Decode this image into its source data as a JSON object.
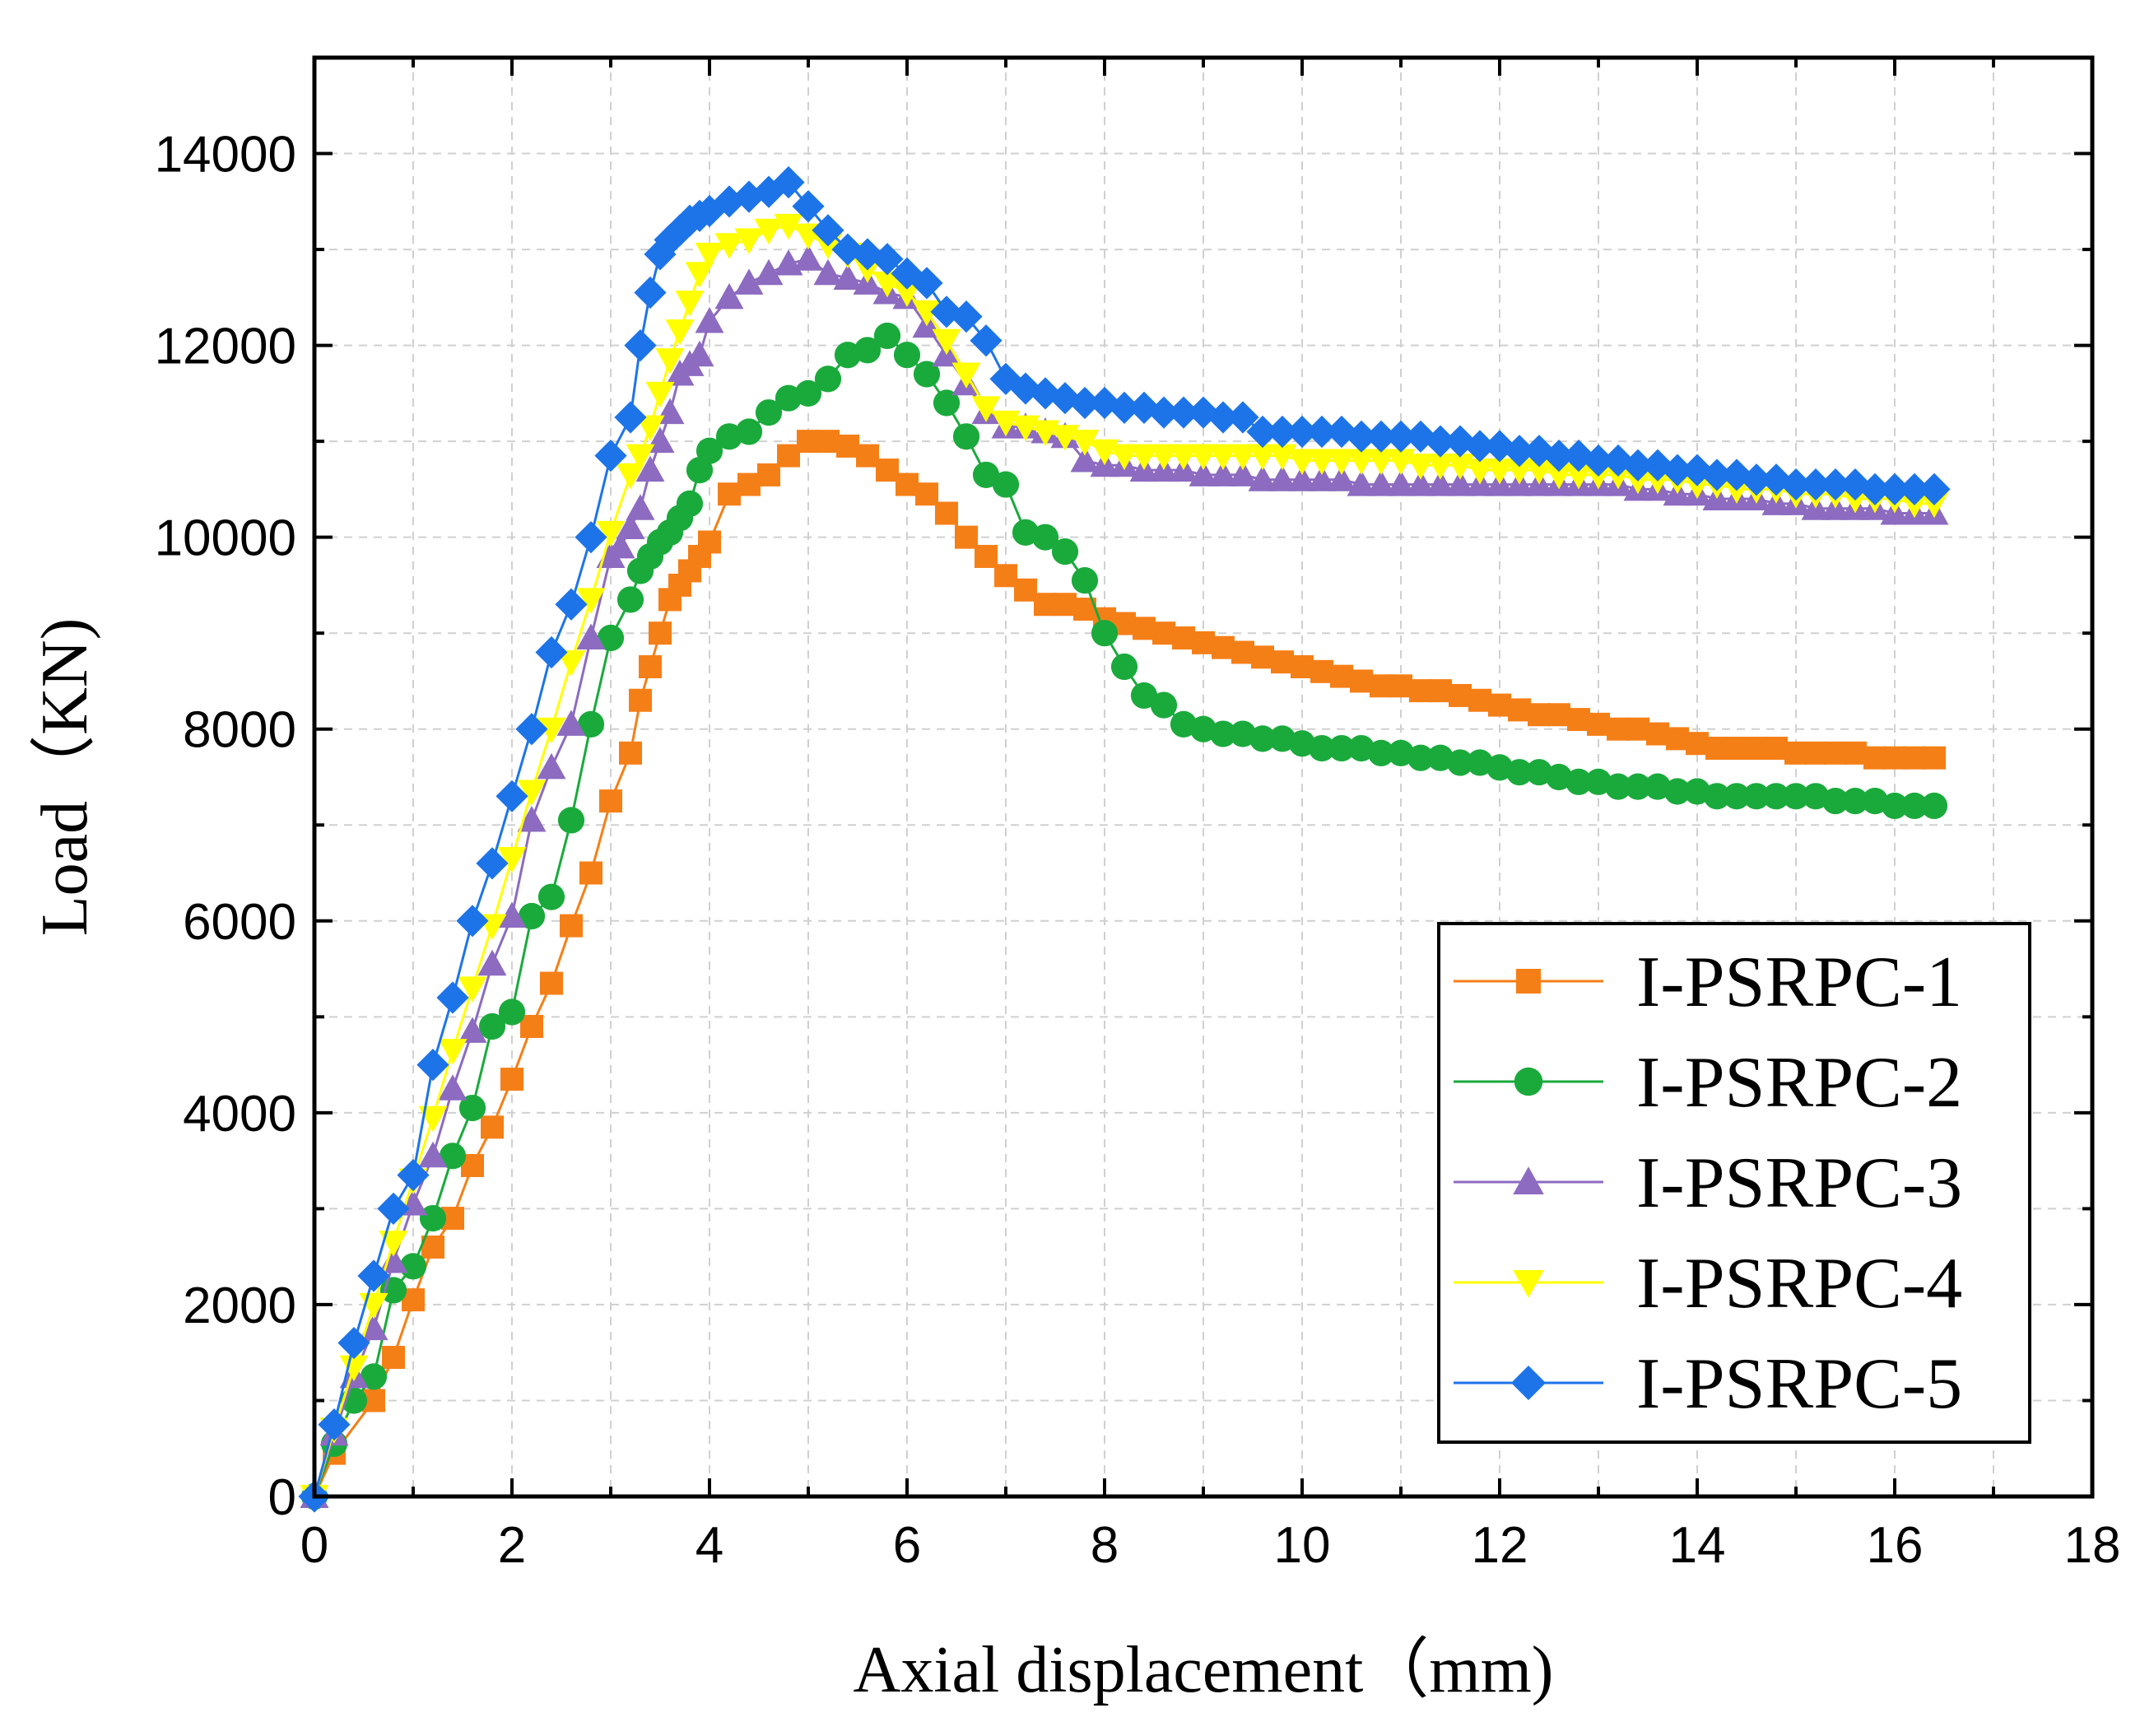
{
  "chart_data": {
    "type": "line",
    "title": "",
    "xlabel": "Axial displacement（mm)",
    "ylabel": "Load（KN)",
    "xlim": [
      0,
      18
    ],
    "ylim": [
      0,
      15000
    ],
    "xticks": [
      0,
      2,
      4,
      6,
      8,
      10,
      12,
      14,
      16,
      18
    ],
    "yticks": [
      0,
      2000,
      4000,
      6000,
      8000,
      10000,
      12000,
      14000
    ],
    "grid": true,
    "legend_position": "bottom-right",
    "series": [
      {
        "name": "I-PSRPC-1",
        "color": "#f57f17",
        "marker": "square",
        "x": [
          0,
          0.2,
          0.6,
          0.8,
          1.0,
          1.2,
          1.4,
          1.6,
          1.8,
          2.0,
          2.2,
          2.4,
          2.6,
          2.8,
          3.0,
          3.2,
          3.3,
          3.4,
          3.5,
          3.6,
          3.7,
          3.8,
          3.9,
          4.0,
          4.2,
          4.4,
          4.6,
          4.8,
          5.0,
          5.2,
          5.4,
          5.6,
          5.8,
          6.0,
          6.2,
          6.4,
          6.6,
          6.8,
          7.0,
          7.2,
          7.4,
          7.6,
          7.8,
          8.0,
          8.2,
          8.4,
          8.6,
          8.8,
          9.0,
          9.2,
          9.4,
          9.6,
          9.8,
          10.0,
          10.2,
          10.4,
          10.6,
          10.8,
          11.0,
          11.2,
          11.4,
          11.6,
          11.8,
          12.0,
          12.2,
          12.4,
          12.6,
          12.8,
          13.0,
          13.2,
          13.4,
          13.6,
          13.8,
          14.0,
          14.2,
          14.4,
          14.6,
          14.8,
          15.0,
          15.2,
          15.4,
          15.6,
          15.8,
          16.0,
          16.2,
          16.4
        ],
        "y": [
          0,
          450,
          1000,
          1450,
          2050,
          2600,
          2900,
          3450,
          3850,
          4350,
          4900,
          5350,
          5950,
          6500,
          7250,
          7750,
          8300,
          8650,
          9000,
          9350,
          9500,
          9650,
          9800,
          9950,
          10450,
          10550,
          10650,
          10850,
          11000,
          11000,
          10950,
          10850,
          10700,
          10550,
          10450,
          10250,
          10000,
          9800,
          9600,
          9450,
          9300,
          9300,
          9250,
          9150,
          9100,
          9050,
          9000,
          8950,
          8900,
          8850,
          8800,
          8750,
          8700,
          8650,
          8600,
          8550,
          8500,
          8450,
          8450,
          8400,
          8400,
          8350,
          8300,
          8250,
          8200,
          8150,
          8150,
          8100,
          8050,
          8000,
          8000,
          7950,
          7900,
          7850,
          7800,
          7800,
          7800,
          7800,
          7750,
          7750,
          7750,
          7750,
          7700,
          7700,
          7700,
          7700
        ]
      },
      {
        "name": "I-PSRPC-2",
        "color": "#1aaa3c",
        "marker": "circle",
        "x": [
          0,
          0.2,
          0.4,
          0.6,
          0.8,
          1.0,
          1.2,
          1.4,
          1.6,
          1.8,
          2.0,
          2.2,
          2.4,
          2.6,
          2.8,
          3.0,
          3.2,
          3.3,
          3.4,
          3.5,
          3.6,
          3.7,
          3.8,
          3.9,
          4.0,
          4.2,
          4.4,
          4.6,
          4.8,
          5.0,
          5.2,
          5.4,
          5.6,
          5.8,
          6.0,
          6.2,
          6.4,
          6.6,
          6.8,
          7.0,
          7.2,
          7.4,
          7.6,
          7.8,
          8.0,
          8.2,
          8.4,
          8.6,
          8.8,
          9.0,
          9.2,
          9.4,
          9.6,
          9.8,
          10.0,
          10.2,
          10.4,
          10.6,
          10.8,
          11.0,
          11.2,
          11.4,
          11.6,
          11.8,
          12.0,
          12.2,
          12.4,
          12.6,
          12.8,
          13.0,
          13.2,
          13.4,
          13.6,
          13.8,
          14.0,
          14.2,
          14.4,
          14.6,
          14.8,
          15.0,
          15.2,
          15.4,
          15.6,
          15.8,
          16.0,
          16.2,
          16.4
        ],
        "y": [
          0,
          550,
          1000,
          1250,
          2150,
          2400,
          2900,
          3550,
          4050,
          4900,
          5050,
          6050,
          6250,
          7050,
          8050,
          8950,
          9350,
          9650,
          9800,
          9950,
          10050,
          10200,
          10350,
          10700,
          10900,
          11050,
          11100,
          11300,
          11450,
          11500,
          11650,
          11900,
          11950,
          12100,
          11900,
          11700,
          11400,
          11050,
          10650,
          10550,
          10050,
          10000,
          9850,
          9550,
          9000,
          8650,
          8350,
          8250,
          8050,
          8000,
          7950,
          7950,
          7900,
          7900,
          7850,
          7800,
          7800,
          7800,
          7750,
          7750,
          7700,
          7700,
          7650,
          7650,
          7600,
          7550,
          7550,
          7500,
          7450,
          7450,
          7400,
          7400,
          7400,
          7350,
          7350,
          7300,
          7300,
          7300,
          7300,
          7300,
          7300,
          7250,
          7250,
          7250,
          7200,
          7200,
          7200
        ]
      },
      {
        "name": "I-PSRPC-3",
        "color": "#8c6bc0",
        "marker": "triangle-up",
        "x": [
          0,
          0.2,
          0.4,
          0.6,
          0.8,
          1.0,
          1.2,
          1.4,
          1.6,
          1.8,
          2.0,
          2.2,
          2.4,
          2.6,
          2.8,
          3.0,
          3.1,
          3.2,
          3.3,
          3.4,
          3.5,
          3.6,
          3.7,
          3.8,
          3.9,
          4.0,
          4.2,
          4.4,
          4.6,
          4.8,
          5.0,
          5.2,
          5.4,
          5.6,
          5.8,
          6.0,
          6.2,
          6.4,
          6.6,
          6.8,
          7.0,
          7.2,
          7.4,
          7.6,
          7.8,
          8.0,
          8.2,
          8.4,
          8.6,
          8.8,
          9.0,
          9.2,
          9.4,
          9.6,
          9.8,
          10.0,
          10.2,
          10.4,
          10.6,
          10.8,
          11.0,
          11.2,
          11.4,
          11.6,
          11.8,
          12.0,
          12.2,
          12.4,
          12.6,
          12.8,
          13.0,
          13.2,
          13.4,
          13.6,
          13.8,
          14.0,
          14.2,
          14.4,
          14.6,
          14.8,
          15.0,
          15.2,
          15.4,
          15.6,
          15.8,
          16.0,
          16.2,
          16.4
        ],
        "y": [
          0,
          650,
          1250,
          1750,
          2450,
          3050,
          3550,
          4250,
          4850,
          5550,
          6050,
          7050,
          7600,
          8050,
          8950,
          9800,
          9900,
          10100,
          10300,
          10700,
          11000,
          11300,
          11700,
          11800,
          11900,
          12250,
          12500,
          12650,
          12750,
          12850,
          12900,
          12750,
          12700,
          12650,
          12550,
          12500,
          12200,
          11900,
          11600,
          11300,
          11150,
          11150,
          11100,
          11050,
          10800,
          10750,
          10750,
          10700,
          10700,
          10700,
          10650,
          10650,
          10650,
          10600,
          10600,
          10600,
          10600,
          10600,
          10550,
          10550,
          10550,
          10550,
          10550,
          10550,
          10550,
          10550,
          10550,
          10550,
          10550,
          10550,
          10550,
          10550,
          10500,
          10500,
          10450,
          10450,
          10400,
          10400,
          10400,
          10350,
          10350,
          10300,
          10300,
          10300,
          10300,
          10250,
          10250,
          10250
        ]
      },
      {
        "name": "I-PSRPC-4",
        "color": "#ffff00",
        "marker": "triangle-down",
        "x": [
          0,
          0.2,
          0.4,
          0.6,
          0.8,
          1.0,
          1.2,
          1.4,
          1.6,
          1.8,
          2.0,
          2.2,
          2.4,
          2.6,
          2.8,
          3.0,
          3.2,
          3.3,
          3.4,
          3.5,
          3.6,
          3.7,
          3.8,
          3.9,
          4.0,
          4.2,
          4.4,
          4.6,
          4.8,
          5.0,
          5.2,
          5.4,
          5.6,
          5.8,
          6.0,
          6.2,
          6.4,
          6.6,
          6.8,
          7.0,
          7.2,
          7.4,
          7.6,
          7.8,
          8.0,
          8.2,
          8.4,
          8.6,
          8.8,
          9.0,
          9.2,
          9.4,
          9.6,
          9.8,
          10.0,
          10.2,
          10.4,
          10.6,
          10.8,
          11.0,
          11.2,
          11.4,
          11.6,
          11.8,
          12.0,
          12.2,
          12.4,
          12.6,
          12.8,
          13.0,
          13.2,
          13.4,
          13.6,
          13.8,
          14.0,
          14.2,
          14.4,
          14.6,
          14.8,
          15.0,
          15.2,
          15.4,
          15.6,
          15.8,
          16.0,
          16.2,
          16.4
        ],
        "y": [
          0,
          700,
          1350,
          2000,
          2650,
          3300,
          3950,
          4650,
          5300,
          5950,
          6650,
          7350,
          8000,
          8700,
          9350,
          10050,
          10650,
          10850,
          11150,
          11500,
          11850,
          12150,
          12450,
          12750,
          12950,
          13050,
          13100,
          13200,
          13250,
          13150,
          13050,
          12950,
          12800,
          12650,
          12550,
          12350,
          12050,
          11700,
          11350,
          11200,
          11150,
          11100,
          11050,
          11000,
          10900,
          10850,
          10850,
          10850,
          10850,
          10850,
          10850,
          10850,
          10850,
          10850,
          10800,
          10800,
          10800,
          10800,
          10800,
          10800,
          10750,
          10750,
          10750,
          10700,
          10700,
          10700,
          10700,
          10650,
          10650,
          10650,
          10650,
          10600,
          10600,
          10600,
          10550,
          10550,
          10500,
          10500,
          10500,
          10450,
          10450,
          10450,
          10400,
          10400,
          10400,
          10350,
          10350
        ]
      },
      {
        "name": "I-PSRPC-5",
        "color": "#1d74e8",
        "marker": "diamond",
        "x": [
          0,
          0.2,
          0.4,
          0.6,
          0.8,
          1.0,
          1.2,
          1.4,
          1.6,
          1.8,
          2.0,
          2.2,
          2.4,
          2.6,
          2.8,
          3.0,
          3.2,
          3.3,
          3.4,
          3.5,
          3.6,
          3.7,
          3.8,
          3.9,
          4.0,
          4.2,
          4.4,
          4.6,
          4.8,
          5.0,
          5.2,
          5.4,
          5.6,
          5.8,
          6.0,
          6.2,
          6.4,
          6.6,
          6.8,
          7.0,
          7.2,
          7.4,
          7.6,
          7.8,
          8.0,
          8.2,
          8.4,
          8.6,
          8.8,
          9.0,
          9.2,
          9.4,
          9.6,
          9.8,
          10.0,
          10.2,
          10.4,
          10.6,
          10.8,
          11.0,
          11.2,
          11.4,
          11.6,
          11.8,
          12.0,
          12.2,
          12.4,
          12.6,
          12.8,
          13.0,
          13.2,
          13.4,
          13.6,
          13.8,
          14.0,
          14.2,
          14.4,
          14.6,
          14.8,
          15.0,
          15.2,
          15.4,
          15.6,
          15.8,
          16.0,
          16.2,
          16.4
        ],
        "y": [
          0,
          750,
          1600,
          2300,
          3000,
          3350,
          4500,
          5200,
          6000,
          6600,
          7300,
          8000,
          8800,
          9300,
          10000,
          10850,
          11250,
          12000,
          12550,
          12950,
          13100,
          13200,
          13300,
          13350,
          13400,
          13500,
          13550,
          13600,
          13700,
          13450,
          13200,
          13000,
          12950,
          12900,
          12750,
          12650,
          12350,
          12300,
          12050,
          11650,
          11550,
          11500,
          11450,
          11400,
          11400,
          11350,
          11350,
          11300,
          11300,
          11300,
          11250,
          11250,
          11100,
          11100,
          11100,
          11100,
          11100,
          11050,
          11050,
          11050,
          11050,
          11000,
          11000,
          10950,
          10950,
          10900,
          10900,
          10850,
          10850,
          10800,
          10800,
          10750,
          10750,
          10700,
          10700,
          10650,
          10650,
          10600,
          10600,
          10550,
          10550,
          10550,
          10550,
          10500,
          10500,
          10500,
          10500
        ]
      }
    ]
  }
}
